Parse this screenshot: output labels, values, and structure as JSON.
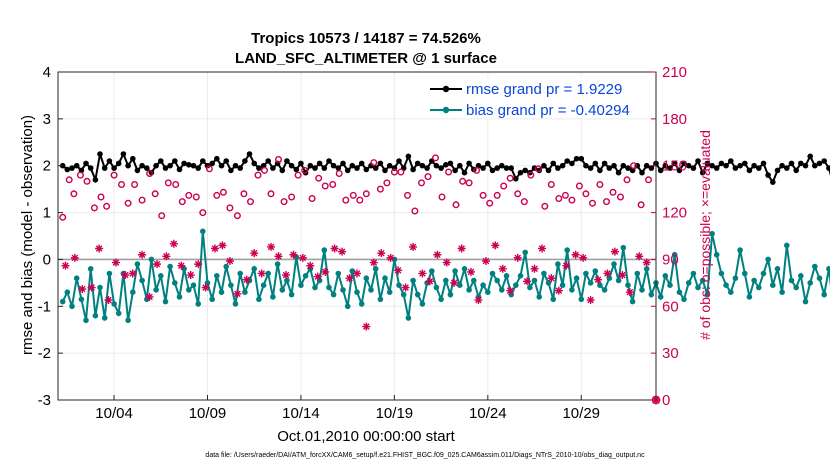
{
  "chart_data": {
    "type": "line",
    "title": "Tropics 10573 / 14187 = 74.526%",
    "subtitle": "LAND_SFC_ALTIMETER @ 1 surface",
    "xlabel": "Oct.01,2010 00:00:00 start",
    "ylabel": "rmse and bias (model - observation)",
    "ylabel_right": "# of obs: o=possible; ×=evaluated",
    "footer": "data file: /Users/raeder/DAI/ATM_forcXX/CAM6_setup/f.e21.FHIST_BGC.f09_025.CAM6assim.011/Diags_NTrS_2010-10/obs_diag_output.nc",
    "xlim": [
      1,
      33
    ],
    "ylim": [
      -3,
      4
    ],
    "ylim_right": [
      0,
      210
    ],
    "grid": true,
    "x_ticks": [
      4,
      9,
      14,
      19,
      24,
      29
    ],
    "x_tick_labels": [
      "10/04",
      "10/09",
      "10/14",
      "10/19",
      "10/24",
      "10/29"
    ],
    "y_ticks": [
      -3,
      -2,
      -1,
      0,
      1,
      2,
      3,
      4
    ],
    "y_tick_labels": [
      "-3",
      "-2",
      "-1",
      "0",
      "1",
      "2",
      "3",
      "4"
    ],
    "y_right_ticks": [
      0,
      30,
      60,
      90,
      120,
      150,
      180,
      210
    ],
    "y_right_tick_labels": [
      "0",
      "30",
      "60",
      "90",
      "120",
      "150",
      "180",
      "210"
    ],
    "zero_line": 0,
    "legend": {
      "placement": "top-right",
      "entries": [
        "rmse grand pr = 1.9229",
        "bias grand pr = -0.40294"
      ]
    },
    "series": [
      {
        "name": "rmse",
        "color": "#000000",
        "axis": "left",
        "style": "line-marker",
        "x_start": 1.25,
        "x_step": 0.25,
        "values": [
          2.0,
          1.92,
          1.95,
          2.0,
          1.9,
          2.05,
          1.95,
          1.7,
          2.25,
          1.95,
          2.1,
          1.95,
          2.05,
          2.25,
          2.0,
          2.15,
          1.9,
          2.0,
          1.95,
          1.85,
          2.0,
          2.1,
          1.95,
          2.0,
          2.1,
          1.92,
          2.05,
          2.02,
          2.0,
          1.95,
          2.1,
          2.0,
          2.05,
          2.15,
          2.0,
          2.1,
          1.9,
          2.0,
          1.95,
          2.1,
          2.25,
          2.05,
          1.95,
          2.0,
          2.1,
          1.95,
          2.05,
          1.9,
          2.1,
          2.0,
          1.92,
          2.05,
          1.85,
          2.0,
          1.95,
          2.05,
          1.95,
          2.1,
          2.0,
          1.95,
          2.05,
          1.9,
          2.0,
          1.95,
          2.05,
          1.92,
          2.0,
          1.95,
          2.05,
          1.9,
          2.0,
          1.95,
          2.1,
          1.95,
          2.2,
          1.92,
          2.05,
          2.0,
          1.95,
          2.1,
          2.0,
          1.95,
          2.02,
          2.05,
          1.9,
          2.0,
          1.85,
          2.05,
          1.92,
          2.0,
          1.95,
          2.05,
          1.9,
          1.95,
          2.0,
          1.95,
          1.95,
          1.72,
          1.85,
          1.9,
          1.85,
          1.95,
          1.9,
          2.0,
          1.9,
          2.05,
          1.95,
          2.0,
          2.1,
          2.05,
          2.15,
          2.15,
          2.0,
          1.95,
          2.05,
          1.9,
          2.05,
          1.95,
          2.0,
          1.85,
          2.0,
          1.95,
          1.9,
          2.0,
          1.85,
          2.0,
          1.95,
          2.05,
          1.9,
          2.0,
          1.95,
          2.05,
          1.9,
          2.05,
          2.0,
          1.95,
          2.1,
          1.85,
          2.05,
          2.0,
          1.95,
          2.05,
          2.0,
          2.1,
          1.95,
          2.0,
          2.05,
          1.9,
          2.0,
          1.95,
          2.05,
          1.8,
          1.65,
          1.9,
          2.0,
          1.95,
          2.05,
          1.9,
          2.05,
          2.0,
          2.2,
          2.0,
          2.05,
          2.1,
          1.95,
          1.6,
          1.8,
          1.85
        ]
      },
      {
        "name": "bias",
        "color": "#008080",
        "axis": "left",
        "style": "line-marker",
        "x_start": 1.25,
        "x_step": 0.25,
        "values": [
          -0.9,
          -0.7,
          -1.0,
          -0.4,
          -0.85,
          -1.3,
          -0.2,
          -1.2,
          -0.6,
          -1.25,
          -0.3,
          -0.95,
          -1.15,
          -0.3,
          -1.3,
          -0.7,
          -0.1,
          -0.45,
          -0.85,
          0.0,
          -0.65,
          -0.35,
          -0.9,
          -0.15,
          -0.5,
          -0.8,
          -0.2,
          -0.65,
          -0.55,
          -0.95,
          0.6,
          -0.5,
          -0.85,
          -0.35,
          -0.7,
          -0.15,
          -0.55,
          -0.95,
          -0.3,
          -0.7,
          -0.45,
          -0.2,
          -0.85,
          -0.55,
          -0.3,
          -0.8,
          -0.1,
          -0.65,
          -0.45,
          -0.75,
          0.05,
          -0.55,
          -0.35,
          -0.2,
          -0.6,
          -0.45,
          0.2,
          -0.6,
          -0.75,
          -0.3,
          -0.65,
          -1.0,
          -0.25,
          -0.7,
          -0.95,
          -0.4,
          -0.65,
          -0.2,
          -0.85,
          -0.4,
          -0.7,
          0.0,
          -0.55,
          -0.75,
          -1.25,
          -0.45,
          -0.75,
          -0.95,
          -0.5,
          -0.25,
          -0.6,
          -0.85,
          -0.45,
          -0.75,
          -0.25,
          -0.55,
          -0.2,
          -0.65,
          -0.45,
          -0.8,
          -0.55,
          -0.7,
          -0.3,
          -0.45,
          -0.65,
          -0.35,
          -0.75,
          -0.55,
          -0.35,
          0.15,
          -0.6,
          -0.45,
          -0.8,
          -0.3,
          -0.5,
          -0.85,
          -0.1,
          -0.55,
          0.2,
          -0.65,
          -0.4,
          -0.85,
          -0.3,
          -0.5,
          -0.25,
          -0.55,
          -0.65,
          -0.4,
          -0.1,
          -0.45,
          0.25,
          -0.55,
          -0.9,
          -0.3,
          -0.65,
          -0.2,
          -0.75,
          -0.5,
          -0.8,
          -0.35,
          -0.55,
          0.1,
          -0.7,
          -0.85,
          -0.5,
          -0.3,
          -0.6,
          -0.45,
          -0.75,
          0.55,
          0.1,
          -0.3,
          -0.55,
          -0.7,
          -0.4,
          0.2,
          -0.3,
          -0.8,
          -0.45,
          -0.6,
          -0.3,
          0.0,
          -0.55,
          -0.2,
          -0.7,
          0.3,
          -0.45,
          -0.6,
          -0.35,
          -0.9,
          -0.5,
          -0.15,
          -0.4,
          -0.75,
          -0.2,
          -1.05,
          -0.6,
          0.5,
          -0.4
        ]
      },
      {
        "name": "obs possible",
        "color": "#cc0052",
        "axis": "right",
        "style": "open-circle",
        "x": [
          1.25,
          1.6,
          1.85,
          2.2,
          2.55,
          2.95,
          3.3,
          3.6,
          4.0,
          4.4,
          4.75,
          5.1,
          5.5,
          5.9,
          6.2,
          6.55,
          6.9,
          7.3,
          7.65,
          8.0,
          8.4,
          8.75,
          9.1,
          9.5,
          9.85,
          10.2,
          10.6,
          10.95,
          11.3,
          11.7,
          12.05,
          12.4,
          12.8,
          13.1,
          13.5,
          13.85,
          14.2,
          14.6,
          14.95,
          15.3,
          15.7,
          16.05,
          16.4,
          16.8,
          17.15,
          17.5,
          17.9,
          18.25,
          18.6,
          19.0,
          19.35,
          19.7,
          20.1,
          20.45,
          20.8,
          21.2,
          21.55,
          21.9,
          22.3,
          22.65,
          23.0,
          23.4,
          23.75,
          24.1,
          24.5,
          24.85,
          25.2,
          25.6,
          25.95,
          26.3,
          26.7,
          27.05,
          27.4,
          27.8,
          28.15,
          28.5,
          28.9,
          29.25,
          29.6,
          30.0,
          30.35,
          30.7,
          31.1,
          31.45,
          31.8,
          32.2,
          32.6
        ],
        "values": [
          117,
          141,
          132,
          144,
          140,
          123,
          130,
          124,
          144,
          138,
          126,
          138,
          128,
          145,
          132,
          118,
          139,
          138,
          127,
          131,
          130,
          120,
          148,
          131,
          133,
          123,
          118,
          132,
          127,
          144,
          147,
          132,
          154,
          127,
          130,
          144,
          147,
          129,
          142,
          137,
          138,
          145,
          128,
          131,
          128,
          132,
          152,
          135,
          139,
          146,
          146,
          131,
          121,
          139,
          143,
          155,
          130,
          146,
          125,
          140,
          139,
          147,
          131,
          126,
          131,
          137,
          142,
          132,
          127,
          144,
          148,
          124,
          138,
          129,
          131,
          128,
          137,
          132,
          126,
          138,
          127,
          133,
          130,
          141,
          150,
          125,
          141
        ]
      },
      {
        "name": "obs evaluated",
        "color": "#cc0052",
        "axis": "right",
        "style": "asterisk",
        "x": [
          1.4,
          1.9,
          2.3,
          2.8,
          3.2,
          3.7,
          4.1,
          4.6,
          5.0,
          5.5,
          5.9,
          6.3,
          6.8,
          7.2,
          7.6,
          8.1,
          8.5,
          8.9,
          9.4,
          9.8,
          10.2,
          10.6,
          11.1,
          11.5,
          11.9,
          12.4,
          12.8,
          13.2,
          13.6,
          14.1,
          14.5,
          14.9,
          15.3,
          15.8,
          16.2,
          16.6,
          17.0,
          17.5,
          17.9,
          18.3,
          18.8,
          19.2,
          19.6,
          20.0,
          20.5,
          20.9,
          21.3,
          21.8,
          22.2,
          22.6,
          23.1,
          23.5,
          23.9,
          24.4,
          24.8,
          25.2,
          25.6,
          26.1,
          26.5,
          26.9,
          27.4,
          27.8,
          28.2,
          28.7,
          29.1,
          29.5,
          29.9,
          30.4,
          30.8,
          31.2,
          31.6,
          32.1,
          32.5
        ],
        "values": [
          86,
          91,
          71,
          72,
          97,
          64,
          88,
          80,
          81,
          93,
          66,
          87,
          92,
          100,
          86,
          80,
          87,
          72,
          97,
          99,
          89,
          68,
          77,
          94,
          81,
          98,
          92,
          80,
          93,
          91,
          86,
          79,
          82,
          97,
          95,
          78,
          81,
          47,
          88,
          94,
          91,
          83,
          72,
          98,
          81,
          76,
          93,
          88,
          75,
          97,
          82,
          64,
          89,
          99,
          84,
          70,
          91,
          76,
          84,
          97,
          78,
          70,
          86,
          93,
          91,
          64,
          77,
          81,
          95,
          80,
          69,
          92,
          88
        ]
      }
    ],
    "final_markers": [
      {
        "name": "end-possible",
        "x": 33,
        "value": 0
      },
      {
        "name": "end-evaluated",
        "x": 33,
        "value": 0
      }
    ]
  }
}
